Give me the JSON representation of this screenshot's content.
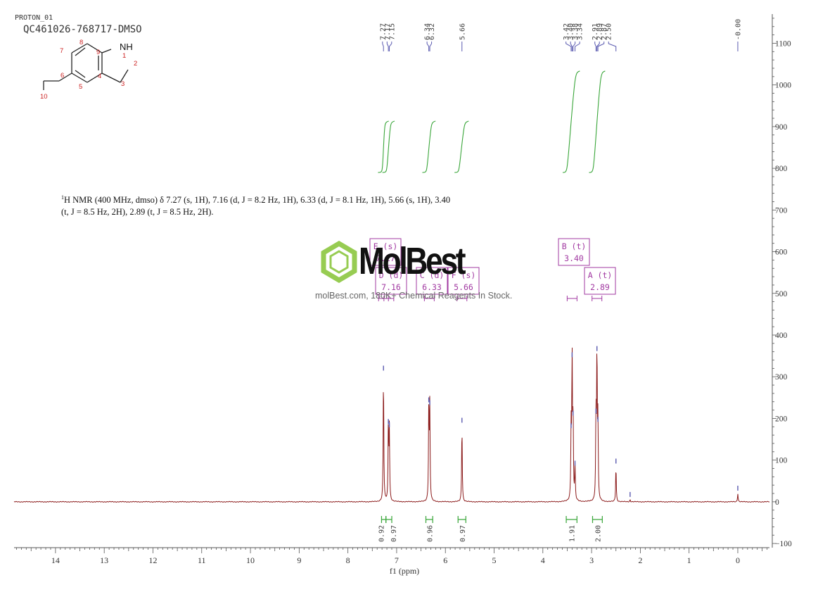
{
  "header": {
    "experiment": "PROTON_01",
    "sample_id": "QC461026-768717-DMSO"
  },
  "structure": {
    "atom_numbers": [
      "1",
      "2",
      "3",
      "4",
      "5",
      "6",
      "7",
      "8",
      "9",
      "10"
    ],
    "heteroatom_label": "NH"
  },
  "nmr_description": {
    "nucleus_mass": "1",
    "text": "H NMR (400 MHz, dmso) δ 7.27 (s, 1H), 7.16 (d, J = 8.2 Hz, 1H), 6.33 (d, J = 8.1 Hz, 1H), 5.66 (s, 1H), 3.40 (t, J = 8.5 Hz, 2H), 2.89 (t, J = 8.5 Hz, 2H)."
  },
  "watermark": {
    "brand": "MolBest",
    "tagline": "molBest.com, 180K+ Chemical Reagents In Stock."
  },
  "chart_data": {
    "type": "line",
    "xlabel": "f1 (ppm)",
    "ylabel": "",
    "x_reversed": true,
    "xlim": [
      14.85,
      -0.65
    ],
    "ylim": [
      -110,
      1170
    ],
    "x_ticks": [
      14,
      13,
      12,
      11,
      10,
      9,
      8,
      7,
      6,
      5,
      4,
      3,
      2,
      1,
      0
    ],
    "y_ticks": [
      -100,
      0,
      100,
      200,
      300,
      400,
      500,
      600,
      700,
      800,
      900,
      1000,
      1100
    ],
    "spectrum_color": "#8b1a1a",
    "integral_curve_color": "#3aa63a",
    "multiplet_box_color": "#a23aa2",
    "peaks": [
      {
        "ppm": 7.27,
        "height": 308
      },
      {
        "ppm": 7.17,
        "height": 180
      },
      {
        "ppm": 7.15,
        "height": 172
      },
      {
        "ppm": 6.34,
        "height": 232
      },
      {
        "ppm": 6.32,
        "height": 225
      },
      {
        "ppm": 5.66,
        "height": 183
      },
      {
        "ppm": 3.42,
        "height": 170
      },
      {
        "ppm": 3.4,
        "height": 340
      },
      {
        "ppm": 3.38,
        "height": 200
      },
      {
        "ppm": 3.34,
        "height": 80
      },
      {
        "ppm": 2.91,
        "height": 205
      },
      {
        "ppm": 2.89,
        "height": 355
      },
      {
        "ppm": 2.87,
        "height": 185
      },
      {
        "ppm": 2.5,
        "height": 85
      },
      {
        "ppm": 2.21,
        "height": 5
      },
      {
        "ppm": 0.0,
        "height": 20
      }
    ],
    "peak_labels": [
      {
        "group": "g1",
        "labels": [
          "7.27",
          "7.17",
          "7.15"
        ]
      },
      {
        "group": "g2",
        "labels": [
          "6.34",
          "6.32"
        ]
      },
      {
        "group": "g3",
        "labels": [
          "5.66"
        ]
      },
      {
        "group": "g4",
        "labels": [
          "3.42",
          "3.40",
          "3.38",
          "3.34"
        ]
      },
      {
        "group": "g5",
        "labels": [
          "2.91",
          "2.89",
          "2.87",
          "2.50"
        ]
      },
      {
        "group": "g6",
        "labels": [
          "-0.00"
        ]
      }
    ],
    "integrals": [
      {
        "from": 7.31,
        "to": 7.22,
        "value": "0.92"
      },
      {
        "from": 7.22,
        "to": 7.1,
        "value": "0.97"
      },
      {
        "from": 6.4,
        "to": 6.26,
        "value": "0.96"
      },
      {
        "from": 5.74,
        "to": 5.58,
        "value": "0.97"
      },
      {
        "from": 3.52,
        "to": 3.3,
        "value": "1.91"
      },
      {
        "from": 2.98,
        "to": 2.78,
        "value": "2.00"
      }
    ],
    "multiplets": [
      {
        "label": "E (s)",
        "shift": "7.27",
        "ppm": 7.27
      },
      {
        "label": "D (d)",
        "shift": "7.16",
        "ppm": 7.16
      },
      {
        "label": "C (d)",
        "shift": "6.33",
        "ppm": 6.33
      },
      {
        "label": "F (s)",
        "shift": "5.66",
        "ppm": 5.66
      },
      {
        "label": "B (t)",
        "shift": "3.40",
        "ppm": 3.4
      },
      {
        "label": "A (t)",
        "shift": "2.89",
        "ppm": 2.89
      }
    ]
  }
}
